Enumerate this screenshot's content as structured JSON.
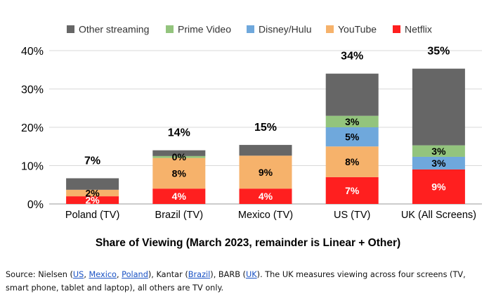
{
  "chart_data": {
    "type": "bar",
    "stacked": true,
    "categories": [
      "Poland (TV)",
      "Brazil (TV)",
      "Mexico (TV)",
      "US (TV)",
      "UK (All Screens)"
    ],
    "series": [
      {
        "name": "Netflix",
        "color": "#ff1f1f",
        "values": [
          2,
          4,
          4,
          7,
          9
        ],
        "labels": [
          "2%",
          "4%",
          "4%",
          "7%",
          "9%"
        ],
        "label_color": "#ffffff"
      },
      {
        "name": "YouTube",
        "color": "#f6b26b",
        "values": [
          1.7,
          8,
          8.6,
          8,
          0
        ],
        "labels": [
          "2%",
          "8%",
          "9%",
          "8%",
          ""
        ],
        "label_color": "#000000"
      },
      {
        "name": "Disney/Hulu",
        "color": "#6fa8dc",
        "values": [
          0,
          0,
          0,
          5,
          3.3
        ],
        "labels": [
          "",
          "",
          "",
          "5%",
          "3%"
        ],
        "label_color": "#000000"
      },
      {
        "name": "Prime Video",
        "color": "#93c47d",
        "values": [
          0,
          0.5,
          0,
          3,
          3
        ],
        "labels": [
          "",
          "0%",
          "",
          "3%",
          "3%"
        ],
        "label_color": "#000000"
      },
      {
        "name": "Other streaming",
        "color": "#666666",
        "values": [
          3,
          1.5,
          2.8,
          11,
          20
        ],
        "labels": [
          "",
          "",
          "",
          "",
          ""
        ],
        "label_color": "#000000"
      }
    ],
    "totals": [
      "7%",
      "14%",
      "15%",
      "34%",
      "35%"
    ],
    "legend_order": [
      "Other streaming",
      "Prime Video",
      "Disney/Hulu",
      "YouTube",
      "Netflix"
    ],
    "legend_position": "top",
    "y_ticks": [
      "0%",
      "10%",
      "20%",
      "30%",
      "40%"
    ],
    "ylim": [
      0,
      40
    ],
    "grid": true,
    "xlabel": "Share of Viewing (March 2023, remainder is Linear + Other)",
    "ylabel": ""
  },
  "source": {
    "prefix": "Source: Nielsen (",
    "us": "US",
    "sep1": ", ",
    "mexico": "Mexico",
    "sep2": ", ",
    "poland": "Poland",
    "mid1": "), Kantar (",
    "brazil": "Brazil",
    "mid2": "), BARB (",
    "uk": "UK",
    "suffix": "). The UK measures viewing across four screens (TV, smart phone, tablet and laptop), all others are TV only.",
    "link_color": "#1a52c4"
  }
}
